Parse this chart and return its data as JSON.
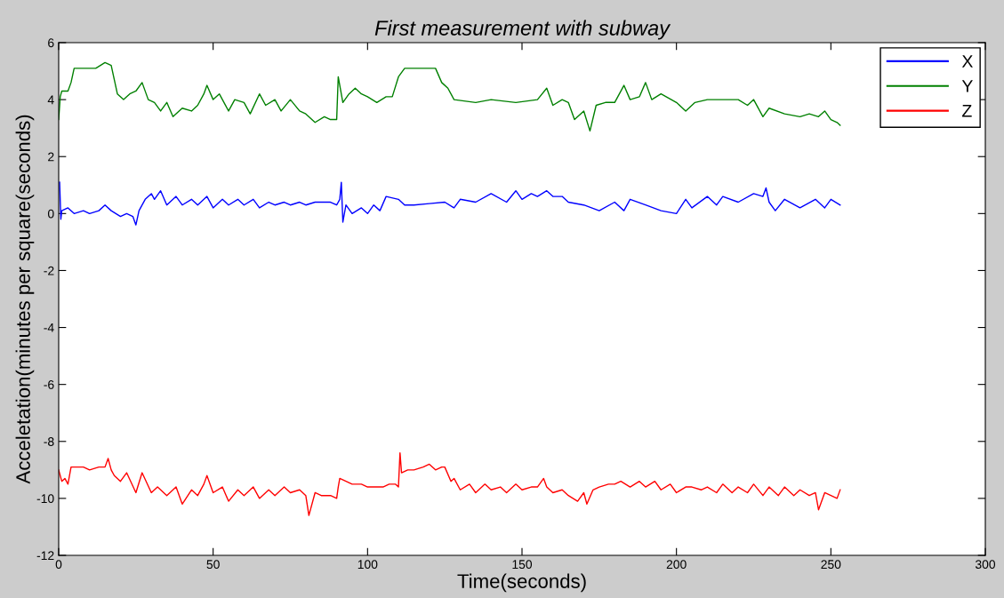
{
  "chart_data": {
    "type": "line",
    "title": "First measurement with subway",
    "xlabel": "Time(seconds)",
    "ylabel": "Acceletation(minutes per square(seconds)",
    "xlim": [
      0,
      300
    ],
    "xticks": [
      0,
      50,
      100,
      150,
      200,
      250,
      300
    ],
    "ylim": [
      -12,
      6
    ],
    "yticks": [
      -12,
      -10,
      -8,
      -6,
      -4,
      -2,
      0,
      2,
      4,
      6
    ],
    "grid": false,
    "legend": "top right",
    "marker": "none",
    "line_style": "solid",
    "series": [
      {
        "name": "X",
        "color": "#0000ff",
        "x": [
          0.3,
          0.7,
          1,
          3,
          5,
          8,
          10,
          13,
          15,
          17,
          20,
          22,
          24,
          25,
          26,
          28,
          30,
          31,
          33,
          35,
          38,
          40,
          43,
          45,
          48,
          50,
          53,
          55,
          58,
          60,
          63,
          65,
          68,
          70,
          73,
          75,
          78,
          80,
          83,
          85,
          88,
          90,
          91,
          91.5,
          92,
          93,
          95,
          98,
          100,
          102,
          104,
          106,
          110,
          112,
          115,
          120,
          125,
          128,
          130,
          135,
          140,
          145,
          148,
          150,
          153,
          155,
          158,
          160,
          163,
          165,
          170,
          175,
          180,
          183,
          185,
          190,
          195,
          200,
          203,
          205,
          210,
          213,
          215,
          220,
          225,
          228,
          229,
          230,
          232,
          235,
          240,
          245,
          248,
          250,
          253
        ],
        "values": [
          1.1,
          -0.2,
          0.1,
          0.2,
          0.0,
          0.1,
          0.0,
          0.1,
          0.3,
          0.1,
          -0.1,
          0.0,
          -0.1,
          -0.4,
          0.1,
          0.5,
          0.7,
          0.5,
          0.8,
          0.3,
          0.6,
          0.3,
          0.5,
          0.3,
          0.6,
          0.2,
          0.5,
          0.3,
          0.5,
          0.3,
          0.5,
          0.2,
          0.4,
          0.3,
          0.4,
          0.3,
          0.4,
          0.3,
          0.4,
          0.4,
          0.4,
          0.3,
          0.5,
          1.1,
          -0.3,
          0.3,
          0.0,
          0.2,
          0.0,
          0.3,
          0.1,
          0.6,
          0.5,
          0.3,
          0.3,
          0.35,
          0.4,
          0.2,
          0.5,
          0.4,
          0.7,
          0.4,
          0.8,
          0.5,
          0.7,
          0.6,
          0.8,
          0.6,
          0.6,
          0.4,
          0.3,
          0.1,
          0.4,
          0.1,
          0.5,
          0.3,
          0.1,
          0.0,
          0.5,
          0.2,
          0.6,
          0.3,
          0.6,
          0.4,
          0.7,
          0.6,
          0.9,
          0.4,
          0.1,
          0.5,
          0.2,
          0.5,
          0.2,
          0.5,
          0.3
        ]
      },
      {
        "name": "Y",
        "color": "#008000",
        "x": [
          0,
          0.5,
          1,
          3,
          4,
          5,
          8,
          12,
          15,
          17,
          18,
          19,
          21,
          23,
          25,
          27,
          29,
          31,
          33,
          35,
          37,
          40,
          43,
          45,
          47,
          48,
          50,
          52,
          55,
          57,
          60,
          62,
          65,
          67,
          70,
          72,
          75,
          78,
          80,
          83,
          86,
          88,
          90,
          90.5,
          92,
          94,
          96,
          98,
          100,
          103,
          106,
          108,
          110,
          112,
          118,
          122,
          124,
          126,
          128,
          135,
          140,
          148,
          155,
          158,
          160,
          163,
          165,
          167,
          170,
          172,
          174,
          177,
          180,
          183,
          185,
          188,
          190,
          192,
          195,
          200,
          203,
          206,
          210,
          215,
          220,
          223,
          225,
          228,
          230,
          235,
          240,
          243,
          246,
          248,
          250,
          252,
          253
        ],
        "values": [
          3.3,
          4.1,
          4.3,
          4.3,
          4.6,
          5.1,
          5.1,
          5.1,
          5.3,
          5.2,
          4.7,
          4.2,
          4.0,
          4.2,
          4.3,
          4.6,
          4.0,
          3.9,
          3.6,
          3.9,
          3.4,
          3.7,
          3.6,
          3.8,
          4.2,
          4.5,
          4.0,
          4.2,
          3.6,
          4.0,
          3.9,
          3.5,
          4.2,
          3.8,
          4.0,
          3.6,
          4.0,
          3.6,
          3.5,
          3.2,
          3.4,
          3.3,
          3.3,
          4.8,
          3.9,
          4.2,
          4.4,
          4.2,
          4.1,
          3.9,
          4.1,
          4.1,
          4.8,
          5.1,
          5.1,
          5.1,
          4.6,
          4.4,
          4.0,
          3.9,
          4.0,
          3.9,
          4.0,
          4.4,
          3.8,
          4.0,
          3.9,
          3.3,
          3.6,
          2.9,
          3.8,
          3.9,
          3.9,
          4.5,
          4.0,
          4.1,
          4.6,
          4.0,
          4.2,
          3.9,
          3.6,
          3.9,
          4.0,
          4.0,
          4.0,
          3.8,
          4.0,
          3.4,
          3.7,
          3.5,
          3.4,
          3.5,
          3.4,
          3.6,
          3.3,
          3.2,
          3.1
        ]
      },
      {
        "name": "Z",
        "color": "#ff0000",
        "x": [
          0,
          1,
          2,
          3,
          4,
          6,
          8,
          10,
          13,
          15,
          16,
          17,
          18,
          20,
          22,
          25,
          27,
          30,
          32,
          35,
          38,
          40,
          43,
          45,
          47,
          48,
          50,
          53,
          55,
          58,
          60,
          63,
          65,
          68,
          70,
          73,
          75,
          78,
          80,
          81,
          83,
          85,
          88,
          90,
          90.5,
          91,
          93,
          95,
          98,
          100,
          103,
          105,
          107,
          109,
          110,
          110.5,
          111,
          113,
          115,
          118,
          120,
          122,
          124,
          125,
          127,
          128,
          130,
          133,
          135,
          138,
          140,
          143,
          145,
          148,
          150,
          153,
          155,
          157,
          158,
          160,
          163,
          165,
          168,
          170,
          171,
          173,
          175,
          178,
          180,
          182,
          185,
          188,
          190,
          193,
          195,
          198,
          200,
          203,
          205,
          208,
          210,
          213,
          215,
          218,
          220,
          223,
          225,
          228,
          230,
          233,
          235,
          238,
          240,
          243,
          245,
          246,
          248,
          250,
          252,
          253
        ],
        "values": [
          -9.0,
          -9.4,
          -9.3,
          -9.5,
          -8.9,
          -8.9,
          -8.9,
          -9.0,
          -8.9,
          -8.9,
          -8.6,
          -9.0,
          -9.2,
          -9.4,
          -9.1,
          -9.8,
          -9.1,
          -9.8,
          -9.6,
          -9.9,
          -9.6,
          -10.2,
          -9.7,
          -9.9,
          -9.5,
          -9.2,
          -9.8,
          -9.6,
          -10.1,
          -9.7,
          -9.9,
          -9.6,
          -10.0,
          -9.7,
          -9.9,
          -9.6,
          -9.8,
          -9.7,
          -9.9,
          -10.6,
          -9.8,
          -9.9,
          -9.9,
          -10.0,
          -9.6,
          -9.3,
          -9.4,
          -9.5,
          -9.5,
          -9.6,
          -9.6,
          -9.6,
          -9.5,
          -9.5,
          -9.6,
          -8.4,
          -9.1,
          -9.0,
          -9.0,
          -8.9,
          -8.8,
          -9.0,
          -8.9,
          -8.9,
          -9.4,
          -9.3,
          -9.7,
          -9.5,
          -9.8,
          -9.5,
          -9.7,
          -9.6,
          -9.8,
          -9.5,
          -9.7,
          -9.6,
          -9.6,
          -9.3,
          -9.6,
          -9.8,
          -9.7,
          -9.9,
          -10.1,
          -9.8,
          -10.2,
          -9.7,
          -9.6,
          -9.5,
          -9.5,
          -9.4,
          -9.6,
          -9.4,
          -9.6,
          -9.4,
          -9.7,
          -9.5,
          -9.8,
          -9.6,
          -9.6,
          -9.7,
          -9.6,
          -9.8,
          -9.5,
          -9.8,
          -9.6,
          -9.8,
          -9.5,
          -9.9,
          -9.6,
          -9.9,
          -9.6,
          -9.9,
          -9.7,
          -9.9,
          -9.8,
          -10.4,
          -9.8,
          -9.9,
          -10.0,
          -9.7
        ]
      }
    ]
  }
}
